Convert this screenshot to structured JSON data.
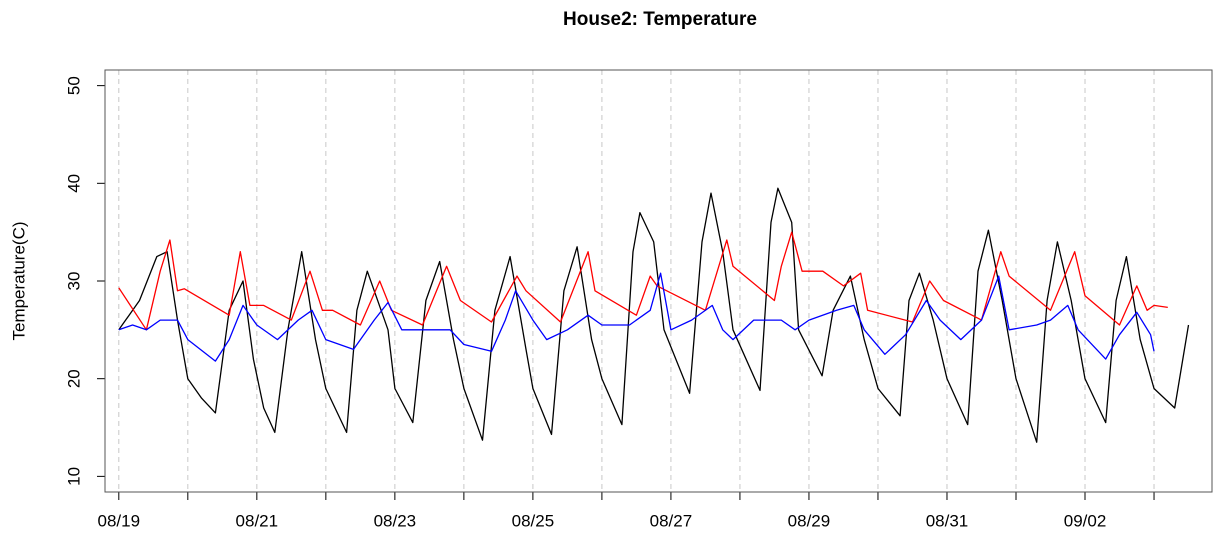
{
  "chart_data": {
    "type": "line",
    "title": "House2: Temperature",
    "ylabel": "Temperature(C)",
    "xlim": [
      -0.2,
      15.84
    ],
    "ylim": [
      8.4,
      51.6
    ],
    "yticks": [
      10,
      20,
      30,
      40,
      50
    ],
    "xticks": [
      {
        "value": 0,
        "label": "08/19"
      },
      {
        "value": 1,
        "label": null
      },
      {
        "value": 2,
        "label": "08/21"
      },
      {
        "value": 3,
        "label": null
      },
      {
        "value": 4,
        "label": "08/23"
      },
      {
        "value": 5,
        "label": null
      },
      {
        "value": 6,
        "label": "08/25"
      },
      {
        "value": 7,
        "label": null
      },
      {
        "value": 8,
        "label": "08/27"
      },
      {
        "value": 9,
        "label": null
      },
      {
        "value": 10,
        "label": "08/29"
      },
      {
        "value": 11,
        "label": null
      },
      {
        "value": 12,
        "label": "08/31"
      },
      {
        "value": 13,
        "label": null
      },
      {
        "value": 14,
        "label": "09/02"
      },
      {
        "value": 15,
        "label": null
      }
    ],
    "grid": true,
    "series": [
      {
        "color": "#000000",
        "x": [
          0,
          0.3,
          0.55,
          0.7,
          0.85,
          1.0,
          1.2,
          1.4,
          1.6,
          1.8,
          1.95,
          2.1,
          2.26,
          2.45,
          2.65,
          2.85,
          3.0,
          3.3,
          3.45,
          3.6,
          3.9,
          4.0,
          4.26,
          4.45,
          4.65,
          4.85,
          5.0,
          5.27,
          5.45,
          5.67,
          5.9,
          6.0,
          6.27,
          6.45,
          6.64,
          6.85,
          7.0,
          7.29,
          7.45,
          7.55,
          7.75,
          7.9,
          8.27,
          8.45,
          8.58,
          8.75,
          8.9,
          9.29,
          9.45,
          9.55,
          9.75,
          9.85,
          10.19,
          10.35,
          10.6,
          10.8,
          11.0,
          11.32,
          11.45,
          11.6,
          11.8,
          12.0,
          12.3,
          12.45,
          12.6,
          12.8,
          13.0,
          13.3,
          13.45,
          13.6,
          13.8,
          14.0,
          14.3,
          14.45,
          14.6,
          14.8,
          15.0,
          15.3,
          15.5
        ],
        "values": [
          25,
          28,
          32.5,
          33,
          26,
          20,
          18,
          16.5,
          27,
          30,
          22,
          17,
          14.5,
          25,
          33,
          24,
          19,
          14.5,
          27,
          31,
          25,
          19,
          15.5,
          28,
          32,
          24,
          19,
          13.7,
          27,
          32.5,
          23,
          19,
          14.3,
          29,
          33.5,
          24,
          20,
          15.3,
          33,
          37,
          34,
          25,
          18.5,
          34,
          39,
          33,
          25,
          18.8,
          36,
          39.5,
          36,
          25,
          20.3,
          27,
          30.5,
          24,
          19,
          16.2,
          28,
          30.8,
          26,
          20,
          15.3,
          31,
          35.2,
          28,
          20,
          13.5,
          28,
          34,
          28,
          20,
          15.5,
          28,
          32.5,
          24,
          19,
          17,
          25.5
        ]
      },
      {
        "color": "#ff0000",
        "x": [
          0,
          0.4,
          0.6,
          0.74,
          0.85,
          0.95,
          1.6,
          1.76,
          1.9,
          2.1,
          2.5,
          2.77,
          2.95,
          3.1,
          3.5,
          3.78,
          3.95,
          4.4,
          4.75,
          4.95,
          5.4,
          5.77,
          5.9,
          6.4,
          6.8,
          6.9,
          7.5,
          7.7,
          7.8,
          8.5,
          8.81,
          8.9,
          9.5,
          9.6,
          9.75,
          9.9,
          10.2,
          10.5,
          10.75,
          10.85,
          11.5,
          11.75,
          11.95,
          12.5,
          12.78,
          12.9,
          13.5,
          13.85,
          14.0,
          14.5,
          14.75,
          14.9,
          15.0,
          15.2
        ],
        "values": [
          29.3,
          25,
          31,
          34.2,
          29,
          29.2,
          26.5,
          33,
          27.5,
          27.5,
          26,
          31,
          27,
          27,
          25.5,
          30,
          27,
          25.5,
          31.5,
          28,
          25.8,
          30.5,
          29,
          25.8,
          33,
          29,
          26.5,
          30.5,
          29.5,
          27,
          34.2,
          31.5,
          28,
          31.5,
          35,
          31,
          31,
          29.5,
          30.8,
          27,
          25.8,
          30,
          28,
          26,
          33,
          30.5,
          27,
          33,
          28.5,
          25.5,
          29.5,
          27,
          27.5,
          27.3
        ]
      },
      {
        "color": "#0000ff",
        "x": [
          0,
          0.2,
          0.4,
          0.6,
          0.85,
          1.0,
          1.4,
          1.6,
          1.8,
          2.0,
          2.3,
          2.6,
          2.8,
          3.0,
          3.4,
          3.7,
          3.9,
          4.1,
          4.5,
          4.8,
          5.0,
          5.4,
          5.6,
          5.75,
          6.0,
          6.2,
          6.5,
          6.8,
          7.0,
          7.4,
          7.7,
          7.85,
          8.0,
          8.3,
          8.6,
          8.75,
          8.9,
          9.2,
          9.6,
          9.8,
          10.0,
          10.4,
          10.65,
          10.8,
          11.1,
          11.4,
          11.7,
          11.9,
          12.2,
          12.5,
          12.75,
          12.9,
          13.3,
          13.5,
          13.75,
          13.9,
          14.3,
          14.5,
          14.75,
          14.95,
          15.0
        ],
        "values": [
          25,
          25.5,
          25,
          26,
          26,
          24,
          21.8,
          24,
          27.5,
          25.5,
          24,
          26,
          27,
          24,
          23,
          26,
          27.8,
          25,
          25,
          25,
          23.5,
          22.8,
          26,
          29,
          26,
          24,
          25,
          26.5,
          25.5,
          25.5,
          27,
          30.8,
          25,
          26,
          27.5,
          25,
          24,
          26,
          26,
          25,
          26,
          27,
          27.5,
          25,
          22.5,
          24.5,
          28,
          26,
          24,
          26,
          30.5,
          25,
          25.5,
          26,
          27.5,
          25,
          22,
          24.5,
          26.8,
          24.5,
          22.8
        ]
      }
    ]
  }
}
